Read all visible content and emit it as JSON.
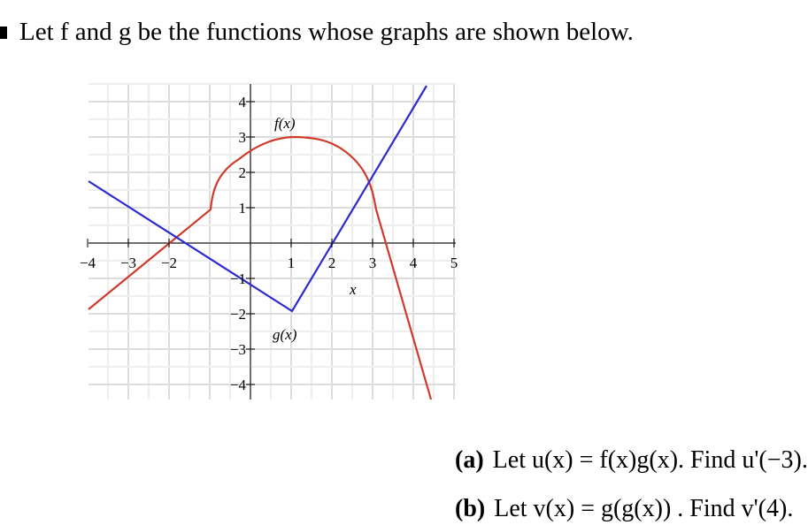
{
  "intro": "Let f and g be the functions whose graphs are shown below.",
  "graph": {
    "x_tick_labels": [
      "−4",
      "−3",
      "−2",
      "1",
      "2",
      "3",
      "4",
      "5"
    ],
    "y_tick_labels": [
      "4",
      "3",
      "2",
      "1",
      "−1",
      "−2",
      "−3",
      "−4"
    ],
    "axis_label": "x",
    "f_label": "f(x)",
    "g_label": "g(x)"
  },
  "questions": [
    {
      "label": "(a)",
      "text": "Let  u(x) = f(x)g(x).  Find u'(−3)."
    },
    {
      "label": "(b)",
      "text": "Let  v(x) = g(g(x)) .  Find v'(4)."
    }
  ]
}
